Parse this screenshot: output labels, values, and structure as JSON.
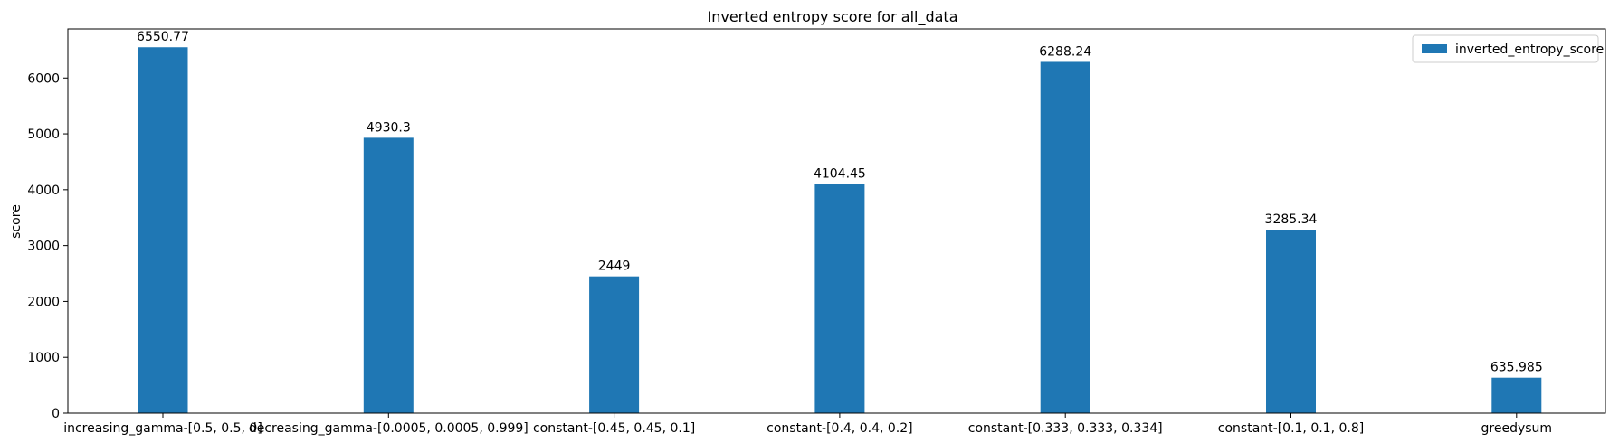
{
  "chart_data": {
    "type": "bar",
    "title": "Inverted entropy score for all_data",
    "xlabel": "",
    "ylabel": "score",
    "categories": [
      "increasing_gamma-[0.5, 0.5, 0]",
      "decreasing_gamma-[0.0005, 0.0005, 0.999]",
      "constant-[0.45, 0.45, 0.1]",
      "constant-[0.4, 0.4, 0.2]",
      "constant-[0.333, 0.333, 0.334]",
      "constant-[0.1, 0.1, 0.8]",
      "greedysum"
    ],
    "series": [
      {
        "name": "inverted_entropy_score",
        "color": "#1f77b4",
        "values": [
          6550.77,
          4930.3,
          2449,
          4104.45,
          6288.24,
          3285.34,
          635.985
        ]
      }
    ],
    "data_labels": [
      "6550.77",
      "4930.3",
      "2449",
      "4104.45",
      "6288.24",
      "3285.34",
      "635.985"
    ],
    "yticks": [
      0,
      1000,
      2000,
      3000,
      4000,
      5000,
      6000
    ],
    "ylim": [
      0,
      6878.3
    ],
    "grid": false,
    "legend_position": "top-right"
  }
}
